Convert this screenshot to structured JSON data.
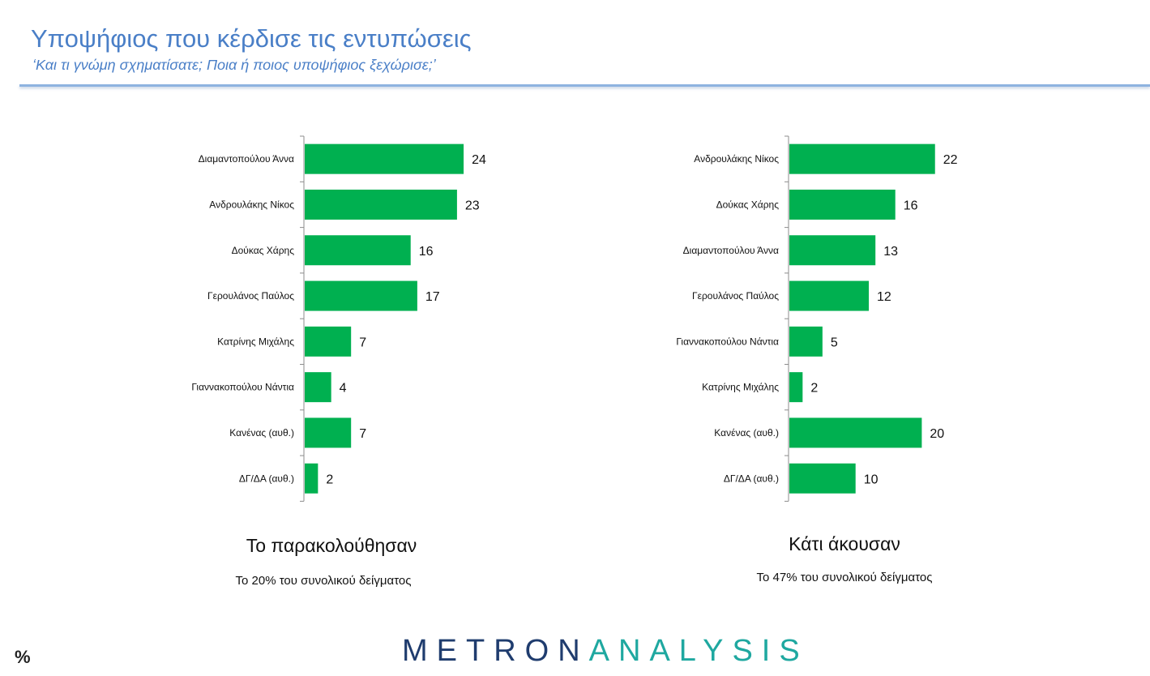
{
  "header": {
    "title": "Υποψήφιος που κέρδισε τις εντυπώσεις",
    "subtitle": "‘Και τι γνώμη σχηματίσατε; Ποια ή ποιος υποψήφιος ξεχώρισε;’"
  },
  "colors": {
    "bar": "#00b050",
    "accent": "#4a7fc7"
  },
  "chart_data": [
    {
      "type": "bar",
      "orientation": "horizontal",
      "categories": [
        "Διαμαντοπούλου Άννα",
        "Ανδρουλάκης Νίκος",
        "Δούκας Χάρης",
        "Γερουλάνος Παύλος",
        "Κατρίνης Μιχάλης",
        "Γιαννακοπούλου Νάντια",
        "Κανένας (αυθ.)",
        "ΔΓ/ΔΑ (αυθ.)"
      ],
      "values": [
        24,
        23,
        16,
        17,
        7,
        4,
        7,
        2
      ],
      "title": "Το παρακολούθησαν",
      "subtitle": "Το 20% του συνολικού δείγματος",
      "xlim": [
        0,
        45
      ],
      "data_labels": true,
      "grid": false
    },
    {
      "type": "bar",
      "orientation": "horizontal",
      "categories": [
        "Ανδρουλάκης Νίκος",
        "Δούκας Χάρης",
        "Διαμαντοπούλου Άννα",
        "Γερουλάνος Παύλος",
        "Γιαννακοπούλου Νάντια",
        "Κατρίνης Μιχάλης",
        "Κανένας (αυθ.)",
        "ΔΓ/ΔΑ (αυθ.)"
      ],
      "values": [
        22,
        16,
        13,
        12,
        5,
        2,
        20,
        10
      ],
      "title": "Κάτι άκουσαν",
      "subtitle": "Το 47% του συνολικού δείγματος",
      "xlim": [
        0,
        45
      ],
      "data_labels": true,
      "grid": false
    }
  ],
  "footer": {
    "logo_part1": "METRON",
    "logo_part2": "ANALYSIS",
    "unit": "%"
  }
}
